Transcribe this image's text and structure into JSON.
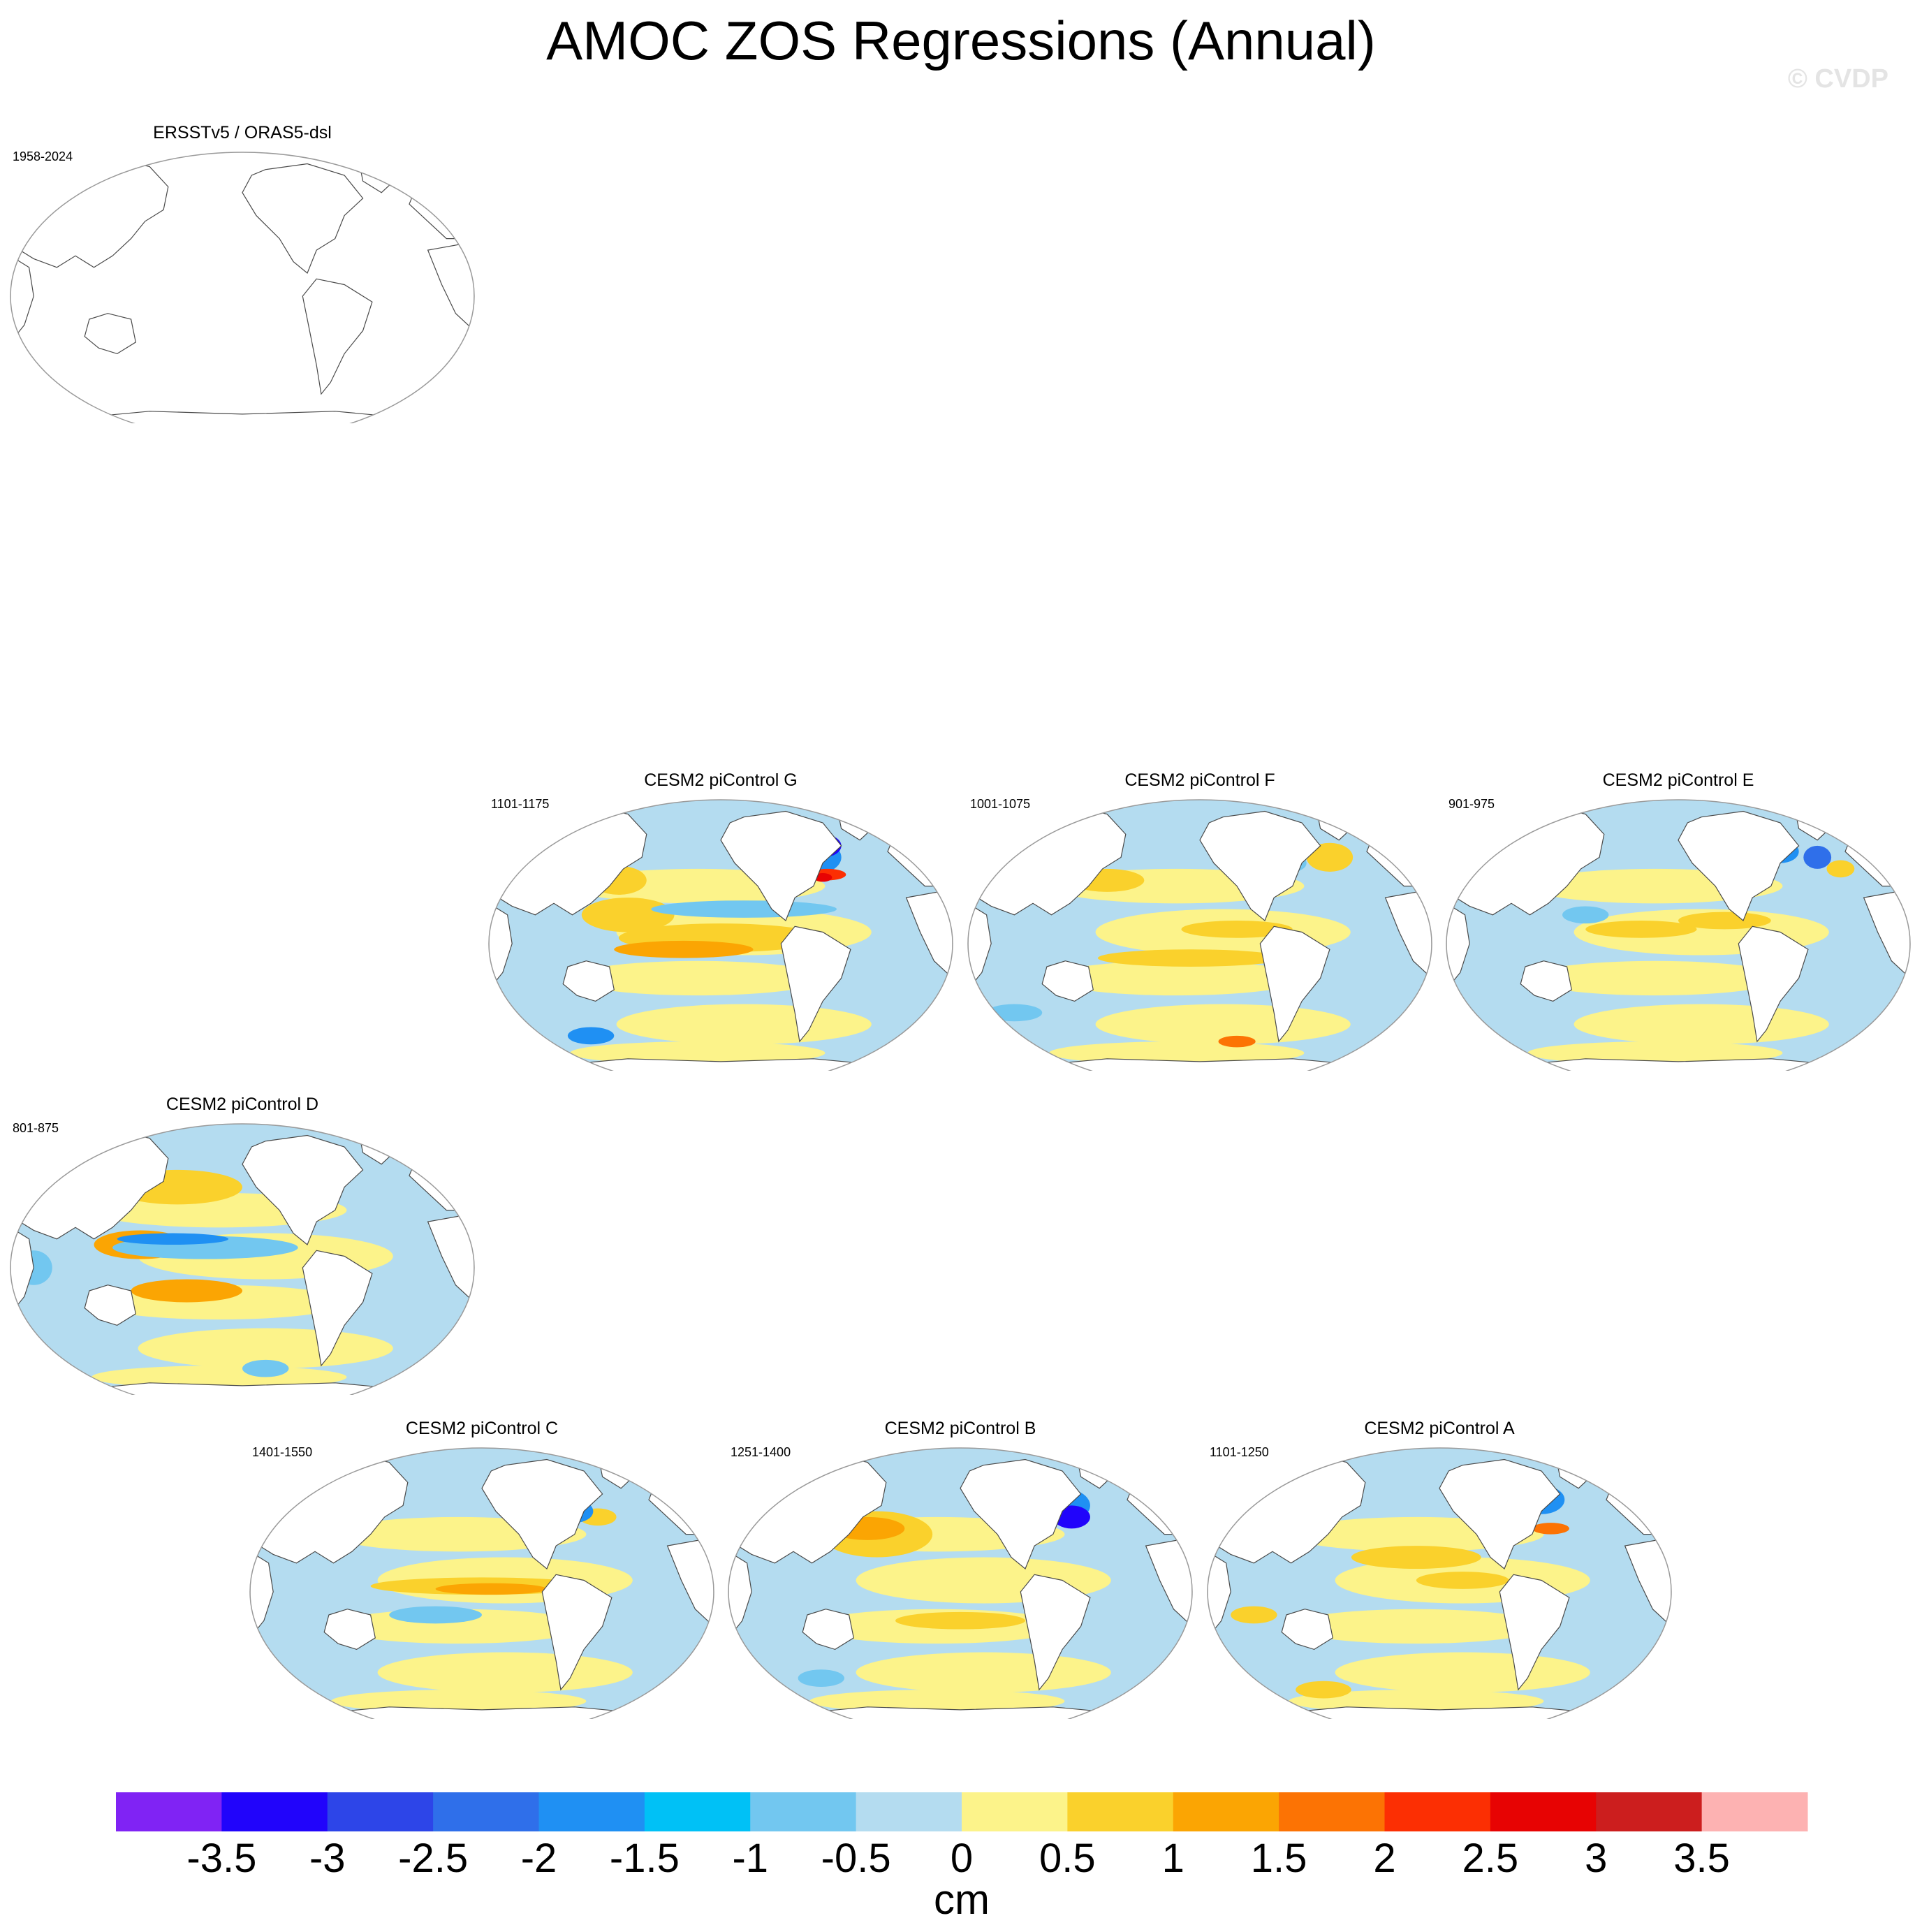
{
  "title": "AMOC ZOS Regressions (Annual)",
  "watermark": "© CVDP",
  "colors": {
    "land": "#ffffff",
    "coast": "#4a4a4a",
    "frame": "#9a9a9a"
  },
  "chart_data": {
    "type": "heatmap",
    "title": "AMOC ZOS Regressions (Annual)",
    "projection": "Robinson, Pacific-centered",
    "variable": "ZOS regression on AMOC",
    "colorbar": {
      "unit": "cm",
      "labels": [
        "-3.5",
        "-3",
        "-2.5",
        "-2",
        "-1.5",
        "-1",
        "-0.5",
        "0",
        "0.5",
        "1",
        "1.5",
        "2",
        "2.5",
        "3",
        "3.5"
      ],
      "levels": [
        -3.5,
        -3,
        -2.5,
        -2,
        -1.5,
        -1,
        -0.5,
        0,
        0.5,
        1,
        1.5,
        2,
        2.5,
        3,
        3.5
      ],
      "colors": [
        "#8023f4",
        "#2104fb",
        "#2d45e8",
        "#2f6fea",
        "#1f90f3",
        "#00c1f6",
        "#72c7f0",
        "#b4dcf0",
        "#fcf38a",
        "#fad12c",
        "#fba503",
        "#fc7304",
        "#fc2f03",
        "#e70303",
        "#cc1e1e",
        "#fdb2b2"
      ]
    },
    "panels": [
      {
        "id": "obs",
        "title": "ERSSTv5 / ORAS5-dsl",
        "years": "1958-2024",
        "has_data": false
      },
      {
        "id": "G",
        "title": "CESM2 piControl G",
        "years": "1101-1175",
        "has_data": true,
        "features": "strong negative (-3) subpolar North Atlantic, positive (+2.5) Gulf Stream, positive tropical Pacific"
      },
      {
        "id": "F",
        "title": "CESM2 piControl F",
        "years": "1001-1075",
        "has_data": true,
        "features": "weak positive North Atlantic, positive Southern Ocean patch"
      },
      {
        "id": "E",
        "title": "CESM2 piControl E",
        "years": "901-975",
        "has_data": true,
        "features": "negative subpolar North Atlantic, mixed weak Pacific"
      },
      {
        "id": "D",
        "title": "CESM2 piControl D",
        "years": "801-875",
        "has_data": true,
        "features": "positive western Pacific/Indonesia, negative equatorial Pacific band"
      },
      {
        "id": "C",
        "title": "CESM2 piControl C",
        "years": "1401-1550",
        "has_data": true,
        "features": "positive equatorial Pacific band, negative Labrador Sea"
      },
      {
        "id": "B",
        "title": "CESM2 piControl B",
        "years": "1251-1400",
        "has_data": true,
        "features": "strong negative (-3) subpolar North Atlantic, positive Kuroshio extension"
      },
      {
        "id": "A",
        "title": "CESM2 piControl A",
        "years": "1101-1250",
        "has_data": true,
        "features": "negative subpolar North Atlantic, positive North Pacific"
      }
    ]
  }
}
